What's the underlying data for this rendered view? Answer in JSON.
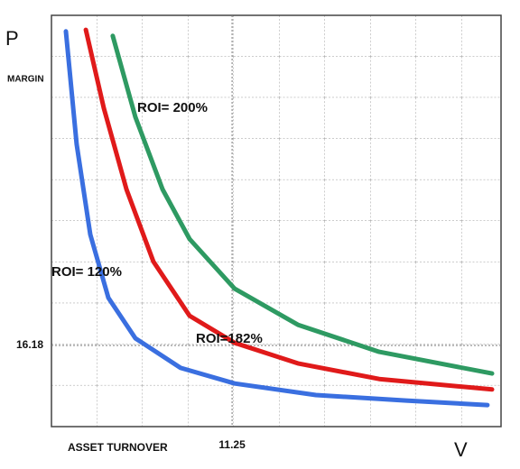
{
  "chart_data": {
    "type": "line",
    "y_label_symbol": "P",
    "y_label": "MARGIN",
    "x_label": "ASSET TURNOVER",
    "x_label_symbol": "V",
    "xlim": [
      0,
      28
    ],
    "ylim": [
      0,
      82
    ],
    "xticks": [
      11.25
    ],
    "yticks": [
      16.18
    ],
    "grid": true,
    "series": [
      {
        "name": "ROI= 120%",
        "color": "#3a6fe0",
        "x": [
          0.9,
          1.57,
          2.42,
          3.54,
          5.23,
          8.04,
          11.41,
          16.47,
          22.09,
          27.15
        ],
        "values": [
          78.8,
          56.3,
          38.3,
          25.7,
          17.6,
          11.7,
          8.6,
          6.3,
          5.2,
          4.3
        ]
      },
      {
        "name": "ROI=182%",
        "color": "#e01a1a",
        "x": [
          2.14,
          3.26,
          4.67,
          6.35,
          8.6,
          11.41,
          15.35,
          20.41,
          27.44
        ],
        "values": [
          79.1,
          63.5,
          47.3,
          32.9,
          22.1,
          16.7,
          12.6,
          9.5,
          7.4
        ]
      },
      {
        "name": "ROI= 200%",
        "color": "#2e9a62",
        "x": [
          3.82,
          5.23,
          6.92,
          8.6,
          11.41,
          15.35,
          20.41,
          27.44
        ],
        "values": [
          77.9,
          61.7,
          47.3,
          37.4,
          27.5,
          20.3,
          14.9,
          10.6
        ]
      }
    ]
  }
}
